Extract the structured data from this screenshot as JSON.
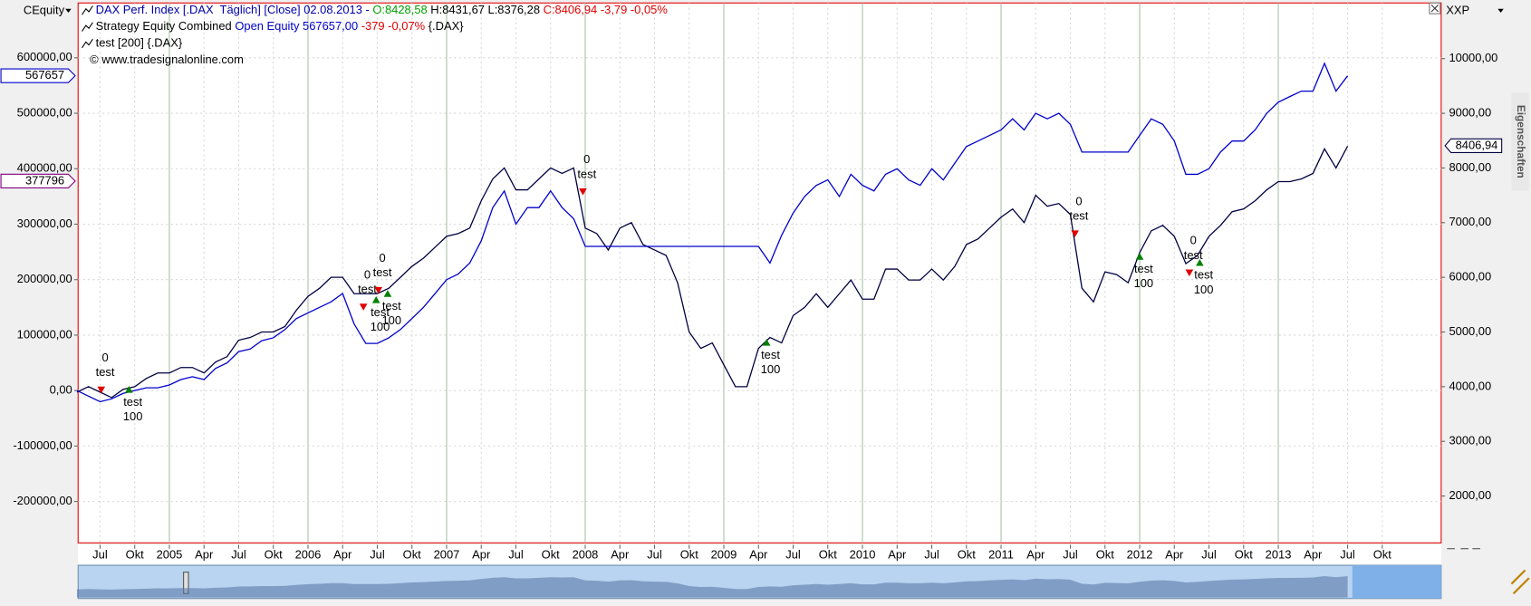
{
  "chart_data": {
    "type": "line",
    "header": {
      "lines": [
        [
          {
            "text": "DAX Perf. Index [.DAX  Täglich] [Close] 02.08.2013 - ",
            "color": "#0000aa"
          },
          {
            "text": "O:8428,58",
            "color": "#00a000"
          },
          {
            "text": " H:8431,67 L:8376,28 ",
            "color": "#000000"
          },
          {
            "text": "C:8406,94 -3,79 -0,05%",
            "color": "#e00000"
          }
        ],
        [
          {
            "text": "Strategy Equity Combined ",
            "color": "#000000"
          },
          {
            "text": "Open Equity 567657,00",
            "color": "#0000cc"
          },
          {
            "text": " -379 -0,07%",
            "color": "#e00000"
          },
          {
            "text": " {.DAX}",
            "color": "#000000"
          }
        ],
        [
          {
            "text": "test [200] {.DAX}",
            "color": "#000000"
          }
        ],
        [
          {
            "text": "© www.tradesignalonline.com",
            "color": "#000000"
          }
        ]
      ]
    },
    "y_axis_title": "CEquity",
    "y2_axis_title": "XXP",
    "side_tab": "Eigenschaften",
    "xlim": [
      4.1,
      122.1
    ],
    "ylim": [
      -274600,
      698900
    ],
    "y2lim": [
      1143,
      11018
    ],
    "grid": true,
    "xticks": [
      {
        "value": 6,
        "label": "Jul"
      },
      {
        "value": 9,
        "label": "Okt"
      },
      {
        "value": 12,
        "label": "2005"
      },
      {
        "value": 15,
        "label": "Apr"
      },
      {
        "value": 18,
        "label": "Jul"
      },
      {
        "value": 21,
        "label": "Okt"
      },
      {
        "value": 24,
        "label": "2006"
      },
      {
        "value": 27,
        "label": "Apr"
      },
      {
        "value": 30,
        "label": "Jul"
      },
      {
        "value": 33,
        "label": "Okt"
      },
      {
        "value": 36,
        "label": "2007"
      },
      {
        "value": 39,
        "label": "Apr"
      },
      {
        "value": 42,
        "label": "Jul"
      },
      {
        "value": 45,
        "label": "Okt"
      },
      {
        "value": 48,
        "label": "2008"
      },
      {
        "value": 51,
        "label": "Apr"
      },
      {
        "value": 54,
        "label": "Jul"
      },
      {
        "value": 57,
        "label": "Okt"
      },
      {
        "value": 60,
        "label": "2009"
      },
      {
        "value": 63,
        "label": "Apr"
      },
      {
        "value": 66,
        "label": "Jul"
      },
      {
        "value": 69,
        "label": "Okt"
      },
      {
        "value": 72,
        "label": "2010"
      },
      {
        "value": 75,
        "label": "Apr"
      },
      {
        "value": 78,
        "label": "Jul"
      },
      {
        "value": 81,
        "label": "Okt"
      },
      {
        "value": 84,
        "label": "2011"
      },
      {
        "value": 87,
        "label": "Apr"
      },
      {
        "value": 90,
        "label": "Jul"
      },
      {
        "value": 93,
        "label": "Okt"
      },
      {
        "value": 96,
        "label": "2012"
      },
      {
        "value": 99,
        "label": "Apr"
      },
      {
        "value": 102,
        "label": "Jul"
      },
      {
        "value": 105,
        "label": "Okt"
      },
      {
        "value": 108,
        "label": "2013"
      },
      {
        "value": 111,
        "label": "Apr"
      },
      {
        "value": 114,
        "label": "Jul"
      },
      {
        "value": 117,
        "label": "Okt"
      }
    ],
    "yticks": [
      {
        "value": 600000,
        "label": "600000,00"
      },
      {
        "value": 500000,
        "label": "500000,00"
      },
      {
        "value": 400000,
        "label": "400000,00"
      },
      {
        "value": 300000,
        "label": "300000,00"
      },
      {
        "value": 200000,
        "label": "200000,00"
      },
      {
        "value": 100000,
        "label": "100000,00"
      },
      {
        "value": 0,
        "label": "0,00"
      },
      {
        "value": -100000,
        "label": "-100000,00"
      },
      {
        "value": -200000,
        "label": "-200000,00"
      }
    ],
    "y2ticks": [
      {
        "value": 10000,
        "label": "10000,00"
      },
      {
        "value": 9000,
        "label": "9000,00"
      },
      {
        "value": 8000,
        "label": "8000,00"
      },
      {
        "value": 7000,
        "label": "7000,00"
      },
      {
        "value": 6000,
        "label": "6000,00"
      },
      {
        "value": 5000,
        "label": "5000,00"
      },
      {
        "value": 4000,
        "label": "4000,00"
      },
      {
        "value": 3000,
        "label": "3000,00"
      },
      {
        "value": 2000,
        "label": "2000,00"
      }
    ],
    "price_tags": [
      {
        "value": 567657,
        "label": "567657",
        "axis": "y",
        "color": "#0000cc"
      },
      {
        "value": 377796,
        "label": "377796",
        "axis": "y",
        "color": "#800080"
      },
      {
        "value": 8406.94,
        "label": "8406,94",
        "axis": "y2",
        "color": "#000040"
      }
    ],
    "x": [
      4,
      5,
      6,
      7,
      8,
      9,
      10,
      11,
      12,
      13,
      14,
      15,
      16,
      17,
      18,
      19,
      20,
      21,
      22,
      23,
      24,
      25,
      26,
      27,
      28,
      29,
      30,
      31,
      32,
      33,
      34,
      35,
      36,
      37,
      38,
      39,
      40,
      41,
      42,
      43,
      44,
      45,
      46,
      47,
      48,
      49,
      50,
      51,
      52,
      53,
      54,
      55,
      56,
      57,
      58,
      59,
      60,
      61,
      62,
      63,
      64,
      65,
      66,
      67,
      68,
      69,
      70,
      71,
      72,
      73,
      74,
      75,
      76,
      77,
      78,
      79,
      80,
      81,
      82,
      83,
      84,
      85,
      86,
      87,
      88,
      89,
      90,
      91,
      92,
      93,
      94,
      95,
      96,
      97,
      98,
      99,
      100,
      101,
      102,
      103,
      104,
      105,
      106,
      107,
      108,
      109,
      110,
      111,
      112,
      113,
      114
    ],
    "series": [
      {
        "name": "DAX Perf. Index",
        "color": "#000040",
        "axis": "y2",
        "values": [
          3900,
          4000,
          3900,
          3800,
          3950,
          4000,
          4150,
          4250,
          4250,
          4350,
          4350,
          4250,
          4450,
          4550,
          4850,
          4900,
          5000,
          5000,
          5100,
          5400,
          5650,
          5800,
          6000,
          6000,
          5700,
          5700,
          5700,
          5800,
          6000,
          6200,
          6350,
          6550,
          6750,
          6800,
          6900,
          7400,
          7800,
          8000,
          7600,
          7600,
          7800,
          8000,
          7900,
          8000,
          6900,
          6800,
          6500,
          6900,
          7000,
          6600,
          6500,
          6400,
          5900,
          5000,
          4700,
          4800,
          4400,
          4000,
          4000,
          4700,
          4900,
          4800,
          5300,
          5450,
          5700,
          5450,
          5700,
          5950,
          5600,
          5600,
          6150,
          6150,
          5950,
          5950,
          6150,
          5950,
          6200,
          6600,
          6700,
          6900,
          7100,
          7250,
          7000,
          7500,
          7300,
          7350,
          7150,
          5800,
          5550,
          6100,
          6050,
          5900,
          6450,
          6850,
          6950,
          6750,
          6250,
          6400,
          6750,
          6950,
          7200,
          7250,
          7400,
          7600,
          7750,
          7750,
          7800,
          7900,
          8350,
          8000,
          8400
        ]
      },
      {
        "name": "Strategy Equity Combined",
        "color": "#0000cc",
        "axis": "y",
        "values": [
          0,
          -10000,
          -20000,
          -15000,
          -5000,
          0,
          5000,
          5000,
          10000,
          20000,
          25000,
          20000,
          40000,
          50000,
          70000,
          75000,
          90000,
          95000,
          110000,
          130000,
          140000,
          150000,
          160000,
          175000,
          120000,
          85000,
          85000,
          95000,
          110000,
          130000,
          150000,
          175000,
          200000,
          210000,
          230000,
          270000,
          330000,
          360000,
          300000,
          330000,
          330000,
          360000,
          330000,
          310000,
          260000,
          260000,
          260000,
          260000,
          260000,
          260000,
          260000,
          260000,
          260000,
          260000,
          260000,
          260000,
          260000,
          260000,
          260000,
          260000,
          230000,
          280000,
          320000,
          350000,
          370000,
          380000,
          350000,
          390000,
          370000,
          360000,
          390000,
          400000,
          380000,
          370000,
          400000,
          380000,
          410000,
          440000,
          450000,
          460000,
          470000,
          490000,
          470000,
          500000,
          490000,
          500000,
          480000,
          430000,
          430000,
          430000,
          430000,
          430000,
          460000,
          490000,
          480000,
          450000,
          390000,
          390000,
          400000,
          430000,
          450000,
          450000,
          470000,
          500000,
          520000,
          530000,
          540000,
          540000,
          590000,
          540000,
          567657
        ]
      }
    ],
    "trades": [
      {
        "x": 6.1,
        "price": 3930,
        "side": "sell",
        "labels": [
          "0",
          "test"
        ]
      },
      {
        "x": 8.5,
        "price": 3960,
        "side": "buy",
        "labels": [
          "test",
          "100"
        ]
      },
      {
        "x": 28.8,
        "price": 5446,
        "side": "sell",
        "labels": [
          "0",
          "test"
        ]
      },
      {
        "x": 29.9,
        "price": 5600,
        "side": "buy",
        "labels": [
          "test",
          "100"
        ]
      },
      {
        "x": 30.1,
        "price": 5750,
        "side": "sell",
        "labels": [
          "0",
          "test"
        ]
      },
      {
        "x": 30.9,
        "price": 5714,
        "side": "buy",
        "labels": [
          "test",
          "100"
        ]
      },
      {
        "x": 47.8,
        "price": 7554,
        "side": "sell",
        "labels": [
          "0",
          "test"
        ]
      },
      {
        "x": 63.7,
        "price": 4821,
        "side": "buy",
        "labels": [
          "test",
          "100"
        ]
      },
      {
        "x": 90.4,
        "price": 6786,
        "side": "sell",
        "labels": [
          "0",
          "test"
        ]
      },
      {
        "x": 96.0,
        "price": 6393,
        "side": "buy",
        "labels": [
          "test",
          "100"
        ]
      },
      {
        "x": 100.3,
        "price": 6071,
        "side": "sell",
        "labels": [
          "0",
          "test"
        ]
      },
      {
        "x": 101.2,
        "price": 6280,
        "side": "buy",
        "labels": [
          "test",
          "100"
        ]
      }
    ]
  }
}
